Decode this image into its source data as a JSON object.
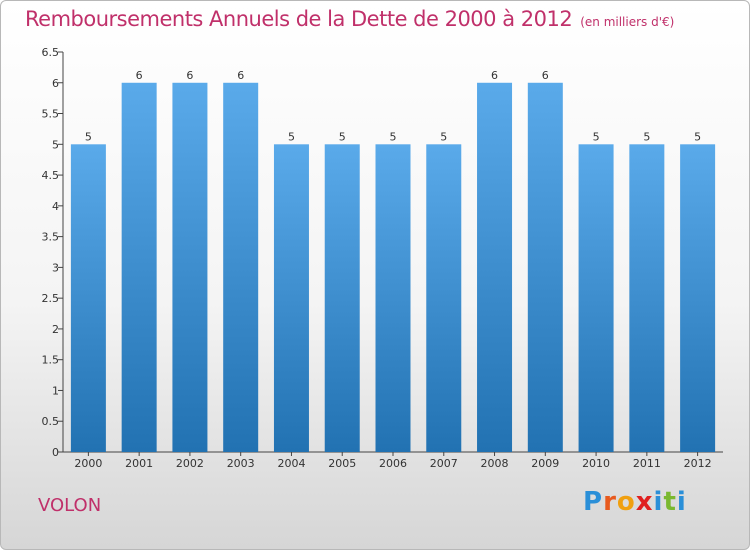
{
  "chart_data": {
    "type": "bar",
    "title": "Remboursements Annuels de la Dette de 2000 à 2012",
    "subtitle": "(en milliers d'€)",
    "categories": [
      "2000",
      "2001",
      "2002",
      "2003",
      "2004",
      "2005",
      "2006",
      "2007",
      "2008",
      "2009",
      "2010",
      "2011",
      "2012"
    ],
    "values": [
      5,
      6,
      6,
      6,
      5,
      5,
      5,
      5,
      6,
      6,
      5,
      5,
      5
    ],
    "data_labels": [
      "5",
      "6",
      "6",
      "6",
      "5",
      "5",
      "5",
      "5",
      "6",
      "6",
      "5",
      "5",
      "5"
    ],
    "ylim": [
      0,
      6.5
    ],
    "yticks": [
      "0",
      "0.5",
      "1",
      "1.5",
      "2",
      "2.5",
      "3",
      "3.5",
      "4",
      "4.5",
      "5",
      "5.5",
      "6",
      "6.5"
    ],
    "grid": false,
    "colors": {
      "bar_top": "#5aaaea",
      "bar_bottom": "#2272b2",
      "text": "#c0306a",
      "axis": "#444444"
    }
  },
  "place_name": "VOLON",
  "logo": {
    "text": "Proxiti",
    "letters": [
      "P",
      "r",
      "o",
      "x",
      "i",
      "t",
      "i"
    ],
    "colors": [
      "#2a8fd8",
      "#e85a1e",
      "#f0a010",
      "#e02020",
      "#2a8fd8",
      "#7ab830",
      "#2a8fd8"
    ]
  }
}
